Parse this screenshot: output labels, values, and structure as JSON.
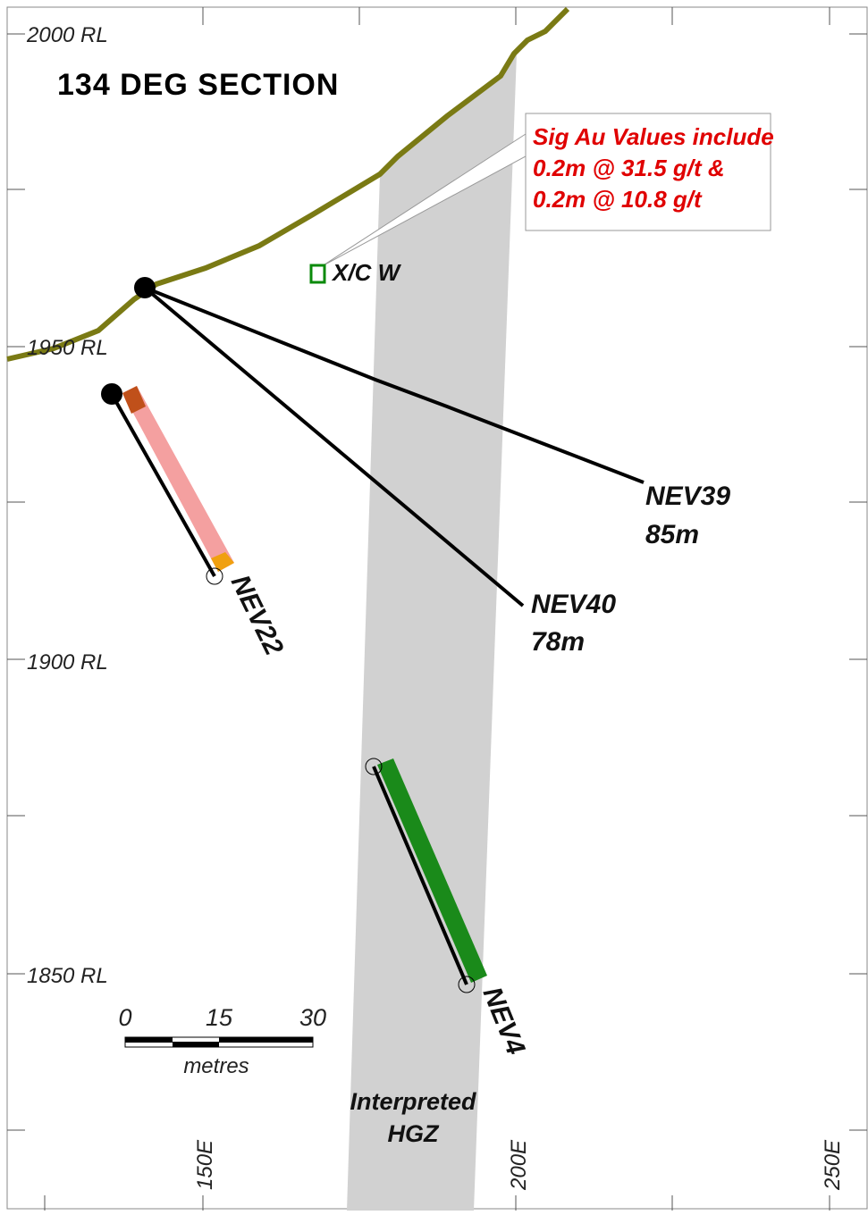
{
  "header": {
    "title": "134 DEG SECTION"
  },
  "axes": {
    "rl_labels": [
      "2000 RL",
      "1950 RL",
      "1900 RL",
      "1850 RL"
    ],
    "easting_labels": [
      "150E",
      "200E",
      "250E"
    ]
  },
  "callout": {
    "lines": [
      "Sig Au Values include",
      "0.2m @ 31.5 g/t &",
      "0.2m @ 10.8 g/t"
    ]
  },
  "workings": {
    "label": "X/C W"
  },
  "holes": [
    {
      "name": "NEV39",
      "length": "85m"
    },
    {
      "name": "NEV40",
      "length": "78m"
    },
    {
      "name": "NEV22"
    },
    {
      "name": "NEV4"
    }
  ],
  "scale_bar": {
    "ticks": [
      "0",
      "15",
      "30"
    ],
    "unit": "metres"
  },
  "zone": {
    "lines": [
      "Interpreted",
      "HGZ"
    ]
  }
}
